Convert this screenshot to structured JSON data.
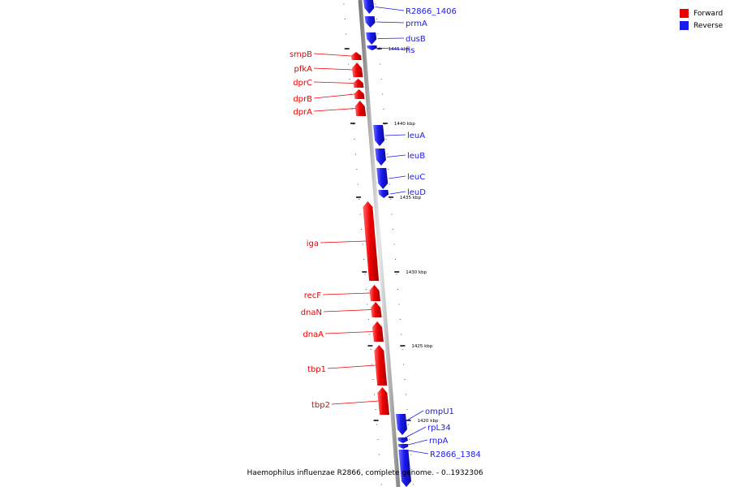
{
  "colors": {
    "forward": "#ee0000",
    "reverse": "#1a1aee",
    "axis": "#999999"
  },
  "legend": [
    {
      "label": "Forward",
      "color": "#ee0000"
    },
    {
      "label": "Reverse",
      "color": "#1a1aee"
    }
  ],
  "caption": "Haemophilus influenzae R2866, complete genome. - 0..1932306",
  "kbp_labels": [
    "1445 kbp",
    "1440 kbp",
    "1435 kbp",
    "1430 kbp",
    "1425 kbp",
    "1420 kbp"
  ],
  "genes": [
    {
      "name": "R2866_1406",
      "strand": "reverse"
    },
    {
      "name": "prmA",
      "strand": "reverse"
    },
    {
      "name": "dusB",
      "strand": "reverse"
    },
    {
      "name": "fis",
      "strand": "reverse"
    },
    {
      "name": "smpB",
      "strand": "forward"
    },
    {
      "name": "pfkA",
      "strand": "forward"
    },
    {
      "name": "dprC",
      "strand": "forward"
    },
    {
      "name": "dprB",
      "strand": "forward"
    },
    {
      "name": "dprA",
      "strand": "forward"
    },
    {
      "name": "leuA",
      "strand": "reverse"
    },
    {
      "name": "leuB",
      "strand": "reverse"
    },
    {
      "name": "leuC",
      "strand": "reverse"
    },
    {
      "name": "leuD",
      "strand": "reverse"
    },
    {
      "name": "iga",
      "strand": "forward"
    },
    {
      "name": "recF",
      "strand": "forward"
    },
    {
      "name": "dnaN",
      "strand": "forward"
    },
    {
      "name": "dnaA",
      "strand": "forward"
    },
    {
      "name": "tbp1",
      "strand": "forward"
    },
    {
      "name": "tbp2",
      "strand": "forward"
    },
    {
      "name": "ompU1",
      "strand": "reverse"
    },
    {
      "name": "rpL34",
      "strand": "reverse"
    },
    {
      "name": "rnpA",
      "strand": "reverse"
    },
    {
      "name": "R2866_1384",
      "strand": "reverse"
    }
  ]
}
